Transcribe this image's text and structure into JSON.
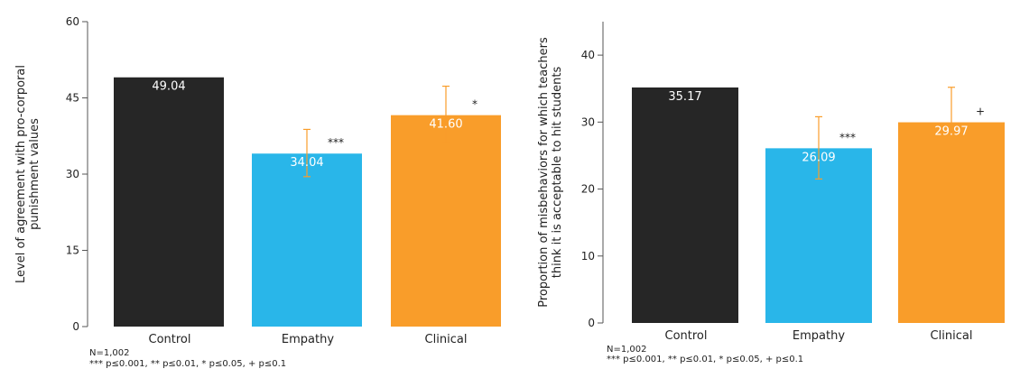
{
  "chart_data": [
    {
      "type": "bar",
      "categories": [
        "Control",
        "Empathy",
        "Clinical"
      ],
      "values": [
        49.04,
        34.04,
        41.6
      ],
      "value_labels": [
        "49.04",
        "34.04",
        "41.60"
      ],
      "error_bars": [
        null,
        [
          29.5,
          38.8
        ],
        [
          36.0,
          47.3
        ]
      ],
      "significance": [
        "",
        "***",
        "*"
      ],
      "colors": [
        "#262626",
        "#29b6e9",
        "#f99d2a"
      ],
      "error_bar_color": "#f99d2a",
      "ylabel": "Level of agreement with pro-corporal punishment values",
      "ylabel_lines": [
        "Level of agreement with pro-corporal",
        "punishment values"
      ],
      "ylim": [
        0,
        60
      ],
      "yticks": [
        0,
        15,
        30,
        45,
        60
      ],
      "grid": false,
      "notes": [
        "N=1,002",
        "*** p≤0.001, ** p≤0.01, * p≤0.05, + p≤0.1"
      ]
    },
    {
      "type": "bar",
      "categories": [
        "Control",
        "Empathy",
        "Clinical"
      ],
      "values": [
        35.17,
        26.09,
        29.97
      ],
      "value_labels": [
        "35.17",
        "26.09",
        "29.97"
      ],
      "error_bars": [
        null,
        [
          21.5,
          30.8
        ],
        [
          24.7,
          35.2
        ]
      ],
      "significance": [
        "",
        "***",
        "+"
      ],
      "colors": [
        "#262626",
        "#29b6e9",
        "#f99d2a"
      ],
      "error_bar_color": "#f99d2a",
      "ylabel": "Proportion of misbehaviors for which teachers think it is acceptable to hit students",
      "ylabel_lines": [
        "Proportion of misbehaviors for which teachers",
        "think it is acceptable to hit students"
      ],
      "ylim": [
        0,
        45
      ],
      "yticks": [
        0,
        10,
        20,
        30,
        40
      ],
      "grid": false,
      "notes": [
        "N=1,002",
        "*** p≤0.001, ** p≤0.01, * p≤0.05, + p≤0.1"
      ]
    }
  ]
}
